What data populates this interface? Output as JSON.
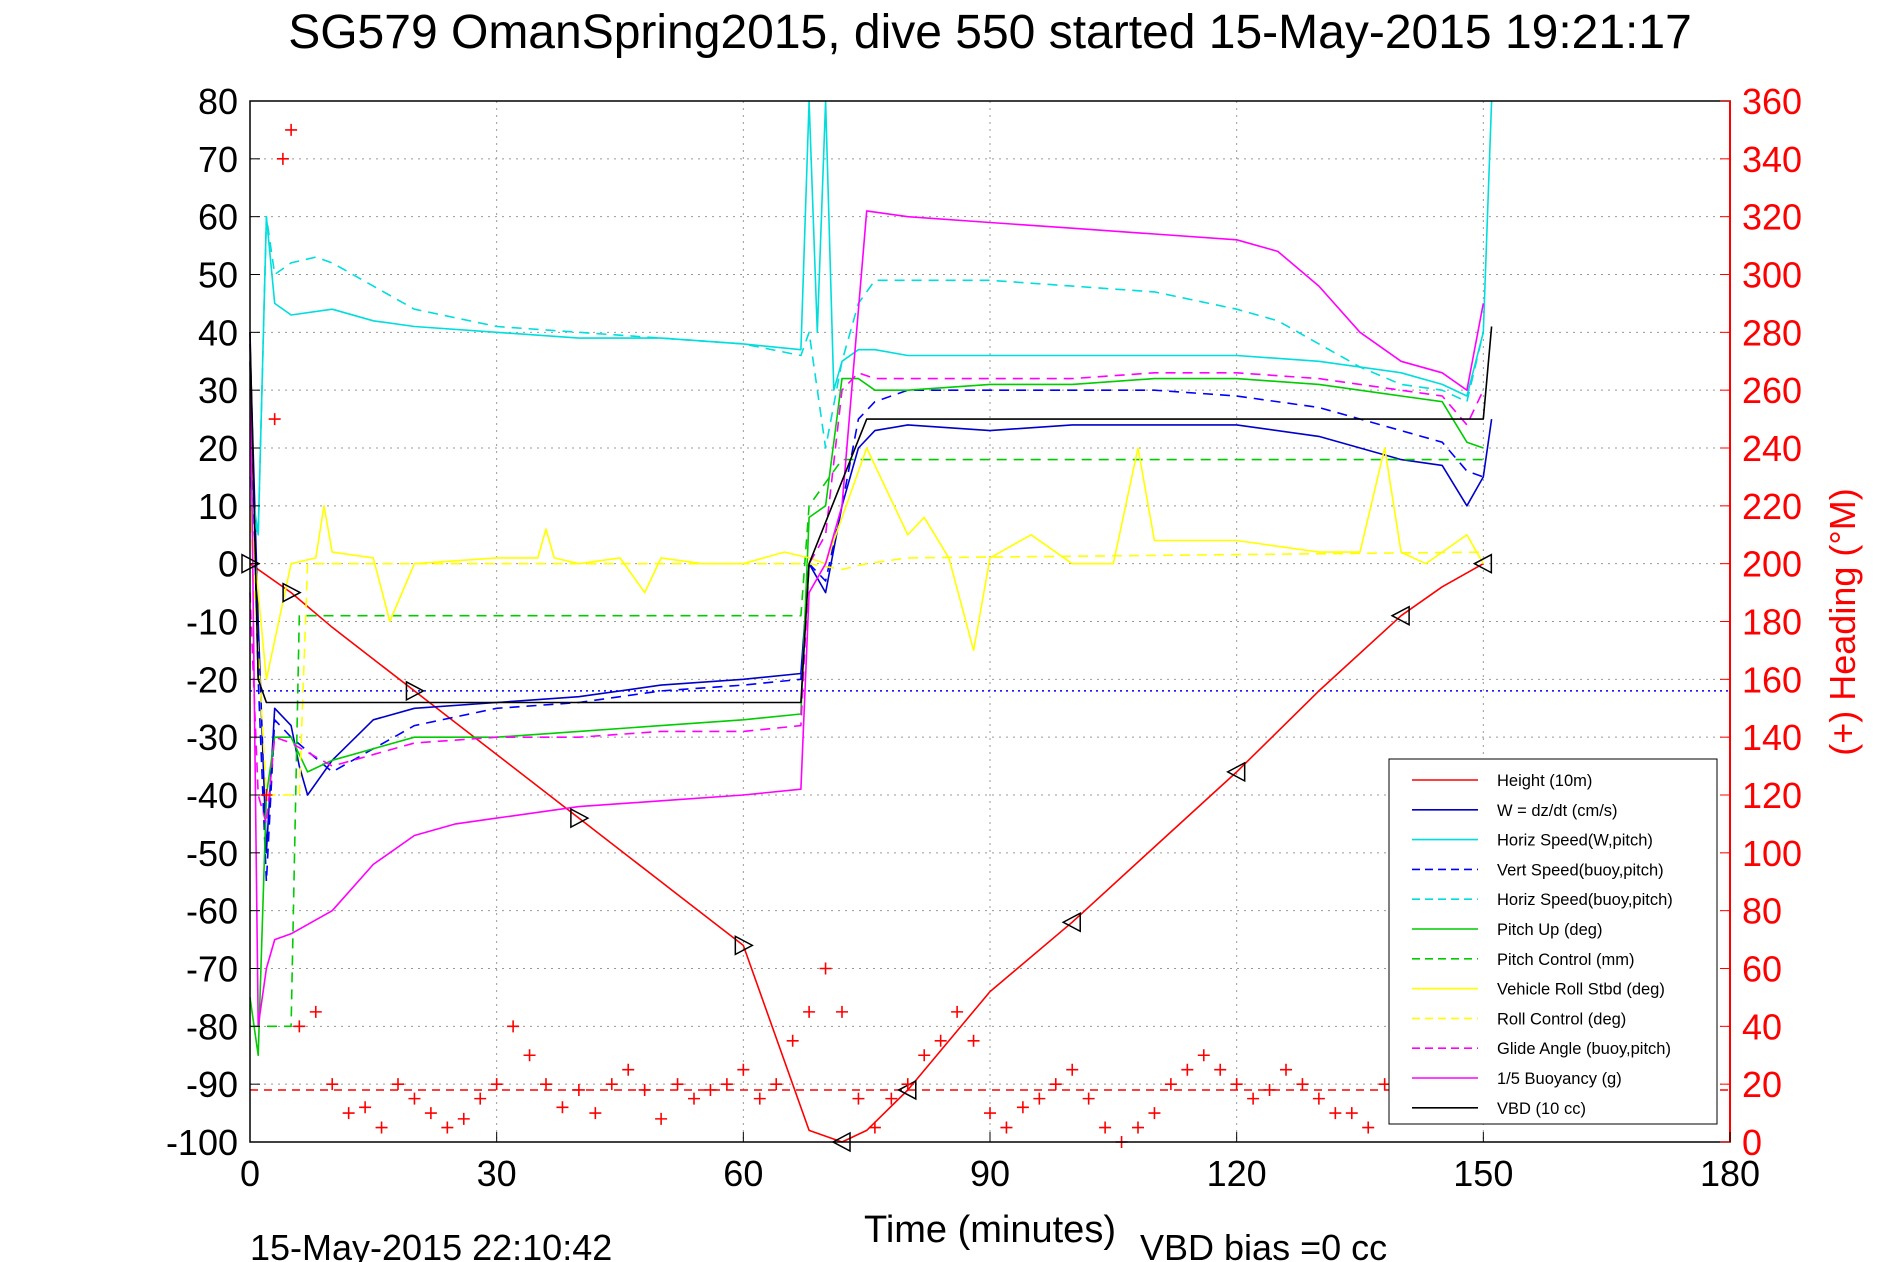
{
  "title": "SG579 OmanSpring2015, dive 550 started 15-May-2015 19:21:17",
  "footer": {
    "end_time": "15-May-2015 22:10:42",
    "vbd_bias": "VBD bias =0 cc"
  },
  "chart_data": {
    "type": "line",
    "xlabel": "Time (minutes)",
    "ylabel_right": "(+) Heading (°M)",
    "xlim": [
      0,
      180
    ],
    "ylim": [
      -100,
      80
    ],
    "ylim_right": [
      0,
      360
    ],
    "xticks": [
      "0",
      "30",
      "60",
      "90",
      "120",
      "150",
      "180"
    ],
    "yticks": [
      "80",
      "70",
      "60",
      "50",
      "40",
      "30",
      "20",
      "10",
      "0",
      "-10",
      "-20",
      "-30",
      "-40",
      "-50",
      "-60",
      "-70",
      "-80",
      "-90",
      "-100"
    ],
    "yticks_right": [
      "360",
      "340",
      "320",
      "300",
      "280",
      "260",
      "240",
      "220",
      "200",
      "180",
      "160",
      "140",
      "120",
      "100",
      "80",
      "60",
      "40",
      "20",
      "0"
    ],
    "grid": true,
    "legend_position": "bottom-right",
    "series": [
      {
        "name": "Height (10m)",
        "color": "#ff0000",
        "style": "solid",
        "x": [
          0,
          5,
          10,
          20,
          30,
          40,
          50,
          60,
          68,
          72,
          75,
          80,
          90,
          100,
          110,
          120,
          130,
          140,
          145,
          150
        ],
        "y": [
          0,
          -5,
          -11,
          -22,
          -33,
          -44,
          -55,
          -66,
          -98,
          -100,
          -98,
          -91,
          -74,
          -62,
          -49,
          -36,
          -22,
          -9,
          -4,
          0
        ]
      },
      {
        "name": "W = dz/dt (cm/s)",
        "color": "#0000cc",
        "style": "solid",
        "x": [
          0,
          1,
          2,
          3,
          5,
          6,
          7,
          10,
          15,
          20,
          30,
          40,
          50,
          60,
          67,
          68,
          70,
          72,
          74,
          76,
          80,
          90,
          100,
          110,
          120,
          130,
          140,
          145,
          148,
          150,
          151
        ],
        "y": [
          38,
          -10,
          -50,
          -25,
          -28,
          -35,
          -40,
          -34,
          -27,
          -25,
          -24,
          -23,
          -21,
          -20,
          -19,
          0,
          -5,
          10,
          20,
          23,
          24,
          23,
          24,
          24,
          24,
          22,
          18,
          17,
          10,
          15,
          25
        ]
      },
      {
        "name": "Horiz Speed(W,pitch)",
        "color": "#00dddd",
        "style": "solid",
        "x": [
          0,
          1,
          2,
          3,
          5,
          10,
          15,
          20,
          30,
          40,
          50,
          60,
          67,
          68,
          69,
          70,
          71,
          72,
          74,
          76,
          80,
          90,
          100,
          110,
          120,
          130,
          140,
          145,
          148,
          150,
          151
        ],
        "y": [
          15,
          5,
          60,
          45,
          43,
          44,
          42,
          41,
          40,
          39,
          39,
          38,
          37,
          80,
          40,
          80,
          30,
          35,
          37,
          37,
          36,
          36,
          36,
          36,
          36,
          35,
          33,
          31,
          29,
          40,
          80
        ]
      },
      {
        "name": "Vert Speed(buoy,pitch)",
        "color": "#0000ff",
        "style": "dashed",
        "x": [
          0,
          1,
          2,
          3,
          5,
          10,
          20,
          30,
          40,
          50,
          60,
          67,
          68,
          70,
          72,
          74,
          76,
          80,
          90,
          100,
          110,
          120,
          130,
          140,
          145,
          148,
          150
        ],
        "y": [
          35,
          -20,
          -55,
          -27,
          -30,
          -36,
          -28,
          -25,
          -24,
          -22,
          -21,
          -20,
          0,
          -3,
          10,
          25,
          28,
          30,
          30,
          30,
          30,
          29,
          27,
          23,
          21,
          16,
          15
        ]
      },
      {
        "name": "Horiz Speed(buoy,pitch)",
        "color": "#00dddd",
        "style": "dashed",
        "x": [
          0,
          1,
          2,
          3,
          5,
          8,
          10,
          15,
          20,
          30,
          40,
          50,
          60,
          67,
          68,
          70,
          72,
          74,
          76,
          80,
          90,
          100,
          110,
          120,
          125,
          130,
          135,
          140,
          145,
          148,
          150
        ],
        "y": [
          10,
          5,
          60,
          50,
          52,
          53,
          52,
          48,
          44,
          41,
          40,
          39,
          38,
          36,
          40,
          20,
          35,
          45,
          49,
          49,
          49,
          48,
          47,
          44,
          42,
          38,
          34,
          31,
          30,
          28,
          40
        ]
      },
      {
        "name": "Pitch Up (deg)",
        "color": "#00cc00",
        "style": "solid",
        "x": [
          0,
          1,
          2,
          3,
          5,
          6,
          7,
          10,
          20,
          30,
          40,
          50,
          60,
          67,
          68,
          70,
          72,
          74,
          76,
          80,
          90,
          100,
          110,
          120,
          130,
          140,
          145,
          148,
          150
        ],
        "y": [
          -75,
          -85,
          -40,
          -30,
          -30,
          -33,
          -36,
          -34,
          -30,
          -30,
          -29,
          -28,
          -27,
          -26,
          8,
          10,
          32,
          32,
          30,
          30,
          31,
          31,
          32,
          32,
          31,
          29,
          28,
          21,
          20
        ]
      },
      {
        "name": "Pitch Control (mm)",
        "color": "#00cc00",
        "style": "dashed",
        "x": [
          0,
          5,
          6,
          67,
          68,
          72,
          150
        ],
        "y": [
          -80,
          -80,
          -9,
          -9,
          10,
          18,
          18
        ]
      },
      {
        "name": "Vehicle Roll Stbd (deg)",
        "color": "#ffff00",
        "style": "solid",
        "x": [
          0,
          2,
          5,
          8,
          9,
          10,
          15,
          17,
          20,
          30,
          35,
          36,
          37,
          40,
          45,
          48,
          50,
          55,
          60,
          65,
          68,
          70,
          75,
          80,
          82,
          85,
          88,
          90,
          95,
          100,
          105,
          108,
          110,
          115,
          120,
          125,
          130,
          135,
          138,
          140,
          143,
          145,
          148,
          150
        ],
        "y": [
          10,
          -20,
          0,
          1,
          10,
          2,
          1,
          -10,
          0,
          1,
          1,
          6,
          1,
          0,
          1,
          -5,
          1,
          0,
          0,
          2,
          1,
          0,
          20,
          5,
          8,
          1,
          -15,
          1,
          5,
          0,
          0,
          20,
          4,
          4,
          4,
          3,
          2,
          2,
          20,
          2,
          0,
          2,
          5,
          0
        ]
      },
      {
        "name": "Roll Control (deg)",
        "color": "#ffff00",
        "style": "dashed",
        "x": [
          0,
          2,
          6,
          7,
          68,
          72,
          75,
          80,
          150
        ],
        "y": [
          10,
          -40,
          -40,
          0,
          0,
          -1,
          0,
          1,
          2
        ]
      },
      {
        "name": "Glide Angle (buoy,pitch)",
        "color": "#ff00ff",
        "style": "dashed",
        "x": [
          0,
          1,
          2,
          3,
          5,
          10,
          20,
          30,
          40,
          50,
          60,
          67,
          68,
          70,
          72,
          74,
          76,
          80,
          90,
          100,
          110,
          120,
          130,
          140,
          145,
          148,
          150
        ],
        "y": [
          -5,
          -40,
          -45,
          -30,
          -31,
          -35,
          -31,
          -30,
          -30,
          -29,
          -29,
          -28,
          0,
          5,
          30,
          33,
          32,
          32,
          32,
          32,
          33,
          33,
          32,
          30,
          29,
          24,
          30
        ]
      },
      {
        "name": "1/5 Buoyancy (g)",
        "color": "#ff00ff",
        "style": "solid",
        "x": [
          0,
          1,
          2,
          3,
          5,
          10,
          15,
          20,
          25,
          30,
          40,
          50,
          60,
          67,
          68,
          70,
          72,
          75,
          80,
          90,
          100,
          110,
          120,
          125,
          130,
          135,
          140,
          145,
          148,
          150
        ],
        "y": [
          40,
          -80,
          -70,
          -65,
          -64,
          -60,
          -52,
          -47,
          -45,
          -44,
          -42,
          -41,
          -40,
          -39,
          -5,
          0,
          10,
          61,
          60,
          59,
          58,
          57,
          56,
          54,
          48,
          40,
          35,
          33,
          30,
          45
        ]
      },
      {
        "name": "VBD (10 cc)",
        "color": "#000000",
        "style": "solid",
        "x": [
          0,
          1,
          2,
          5,
          67,
          68,
          75,
          150,
          151
        ],
        "y": [
          40,
          -20,
          -24,
          -24,
          -24,
          0,
          25,
          25,
          41
        ]
      }
    ],
    "heading_series": {
      "name": "Heading",
      "color": "#ff0000",
      "marker": "+",
      "x": [
        2,
        3,
        4,
        5,
        6,
        8,
        10,
        12,
        14,
        16,
        18,
        20,
        22,
        24,
        26,
        28,
        30,
        32,
        34,
        36,
        38,
        40,
        42,
        44,
        46,
        48,
        50,
        52,
        54,
        56,
        58,
        60,
        62,
        64,
        66,
        68,
        70,
        72,
        74,
        76,
        78,
        80,
        82,
        84,
        86,
        88,
        90,
        92,
        94,
        96,
        98,
        100,
        102,
        104,
        106,
        108,
        110,
        112,
        114,
        116,
        118,
        120,
        122,
        124,
        126,
        128,
        130,
        132,
        134,
        136,
        138,
        140,
        142,
        144,
        146,
        148
      ],
      "y": [
        120,
        250,
        340,
        350,
        40,
        45,
        20,
        10,
        12,
        5,
        20,
        15,
        10,
        5,
        8,
        15,
        20,
        40,
        30,
        20,
        12,
        18,
        10,
        20,
        25,
        18,
        8,
        20,
        15,
        18,
        20,
        25,
        15,
        20,
        35,
        45,
        60,
        45,
        15,
        5,
        15,
        20,
        30,
        35,
        45,
        35,
        10,
        5,
        12,
        15,
        20,
        25,
        15,
        5,
        0,
        5,
        10,
        20,
        25,
        30,
        25,
        20,
        15,
        18,
        25,
        20,
        15,
        10,
        10,
        5,
        20,
        15,
        20,
        25,
        15,
        20
      ]
    },
    "heading_reference": {
      "style": "dashed",
      "color": "#ff0000",
      "value": 18
    },
    "vbd_bias_line": {
      "style": "dotted",
      "color": "#0000ff",
      "value": -22
    }
  }
}
